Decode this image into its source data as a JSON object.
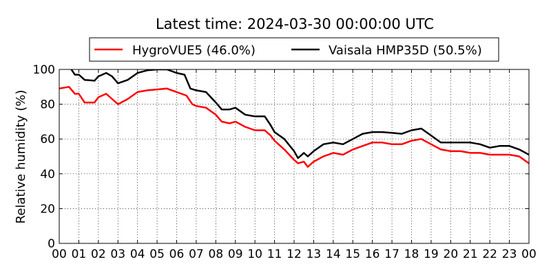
{
  "chart_data": {
    "type": "line",
    "title": "Latest time: 2024-03-30 00:00:00 UTC",
    "xlabel": "",
    "ylabel": "Relative humidity (%)",
    "ylim": [
      0,
      100
    ],
    "xlim": [
      0,
      24
    ],
    "grid": true,
    "legend_placement": "top",
    "xtick_labels": [
      "00",
      "01",
      "02",
      "03",
      "04",
      "05",
      "06",
      "07",
      "08",
      "09",
      "10",
      "11",
      "12",
      "13",
      "14",
      "15",
      "16",
      "17",
      "18",
      "19",
      "20",
      "21",
      "22",
      "23",
      "00"
    ],
    "yticks": [
      0,
      20,
      40,
      60,
      80,
      100
    ],
    "series": [
      {
        "name": "HygroVUE5 (46.0%)",
        "color": "#ff0000",
        "x": [
          0,
          0.5,
          0.8,
          1.0,
          1.3,
          1.8,
          2.0,
          2.4,
          2.7,
          3.0,
          3.5,
          4.0,
          4.5,
          5.0,
          5.5,
          6.0,
          6.5,
          6.8,
          7.0,
          7.5,
          8.0,
          8.3,
          8.7,
          9.0,
          9.5,
          10.0,
          10.5,
          10.8,
          11.0,
          11.5,
          12.0,
          12.2,
          12.5,
          12.7,
          13.0,
          13.5,
          14.0,
          14.5,
          15.0,
          15.5,
          16.0,
          16.5,
          17.0,
          17.5,
          18.0,
          18.5,
          19.0,
          19.5,
          20.0,
          20.5,
          21.0,
          21.5,
          22.0,
          22.5,
          23.0,
          23.5,
          24.0
        ],
        "y": [
          89,
          90,
          86,
          86,
          81,
          81,
          84,
          86,
          83,
          80,
          83,
          87,
          88,
          88.5,
          89,
          87,
          85,
          80,
          79,
          78,
          74,
          70,
          69,
          70,
          67,
          65,
          65,
          62,
          59,
          54,
          48,
          46,
          47,
          44,
          47,
          50,
          52,
          51,
          54,
          56,
          58,
          58,
          57,
          57,
          59,
          60,
          57,
          54,
          53,
          53,
          52,
          52,
          51,
          51,
          51,
          50,
          46
        ]
      },
      {
        "name": "Vaisala HMP35D (50.5%)",
        "color": "#000000",
        "x": [
          0,
          0.5,
          0.8,
          1.0,
          1.3,
          1.8,
          2.0,
          2.4,
          2.7,
          3.0,
          3.5,
          4.0,
          4.5,
          5.0,
          5.5,
          6.0,
          6.4,
          6.7,
          7.0,
          7.5,
          8.0,
          8.3,
          8.7,
          9.0,
          9.5,
          10.0,
          10.5,
          10.8,
          11.0,
          11.5,
          12.0,
          12.2,
          12.5,
          12.7,
          13.0,
          13.5,
          14.0,
          14.5,
          15.0,
          15.5,
          16.0,
          16.5,
          17.0,
          17.5,
          18.0,
          18.5,
          19.0,
          19.5,
          20.0,
          20.5,
          21.0,
          21.5,
          22.0,
          22.5,
          23.0,
          23.5,
          24.0
        ],
        "y": [
          103,
          102,
          97,
          97,
          94,
          93.5,
          96,
          98,
          96,
          92,
          94,
          98,
          99.5,
          100,
          100,
          98,
          97,
          89,
          88,
          87,
          81,
          77,
          77,
          78,
          74,
          73,
          73,
          68,
          64,
          60,
          53,
          49,
          52,
          50,
          53,
          57,
          58,
          57,
          60,
          63,
          64,
          64,
          63.5,
          63,
          65,
          66,
          62,
          58,
          58,
          58,
          58,
          57,
          55,
          56,
          56,
          54,
          51
        ]
      }
    ]
  }
}
